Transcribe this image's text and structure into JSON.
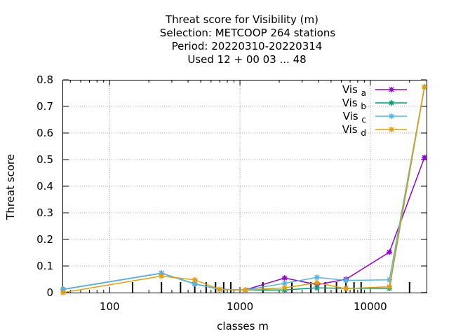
{
  "chart_data": {
    "type": "line",
    "title_lines": [
      "Threat score  for Visibility (m)",
      "Selection: METCOOP    264 stations",
      "Period: 20220310-20220314",
      "Used  12 + 00 03 ... 48"
    ],
    "xlabel": "classes m",
    "ylabel": "Threat score",
    "x_scale": "log",
    "xlim": [
      44,
      27000
    ],
    "ylim": [
      0,
      0.8
    ],
    "x_ticks": [
      100,
      1000,
      10000
    ],
    "x_tick_labels": [
      "100",
      "1000",
      "10000"
    ],
    "y_ticks": [
      0,
      0.1,
      0.2,
      0.3,
      0.4,
      0.5,
      0.6,
      0.7,
      0.8
    ],
    "y_tick_labels": [
      "0",
      "0.1",
      "0.2",
      "0.3",
      "0.4",
      "0.5",
      "0.6",
      "0.7",
      "0.8"
    ],
    "grid": true,
    "legend_position": "top-right",
    "class_marks": [
      150,
      250,
      350,
      450,
      550,
      650,
      750,
      850,
      1500,
      2500,
      3500,
      4500,
      5500,
      6500,
      7500,
      8500,
      20000
    ],
    "x": [
      44,
      250,
      450,
      700,
      1100,
      2200,
      3900,
      6500,
      14000,
      26000
    ],
    "series": [
      {
        "name": "Vis",
        "subscript": "a",
        "color": "#9400d3",
        "values": [
          0.012,
          0.073,
          0.033,
          0.012,
          0.01,
          0.055,
          0.03,
          0.05,
          0.152,
          0.508
        ]
      },
      {
        "name": "Vis",
        "subscript": "b",
        "color": "#009e73",
        "values": [
          0.012,
          0.073,
          0.033,
          0.012,
          0.01,
          0.01,
          0.018,
          0.016,
          0.016,
          0.773
        ]
      },
      {
        "name": "Vis",
        "subscript": "c",
        "color": "#56b4e9",
        "values": [
          0.012,
          0.073,
          0.033,
          0.012,
          0.01,
          0.035,
          0.057,
          0.046,
          0.048,
          0.773
        ]
      },
      {
        "name": "Vis",
        "subscript": "d",
        "color": "#e69f00",
        "values": [
          0.0,
          0.062,
          0.048,
          0.012,
          0.01,
          0.018,
          0.037,
          0.015,
          0.022,
          0.773
        ]
      }
    ]
  }
}
